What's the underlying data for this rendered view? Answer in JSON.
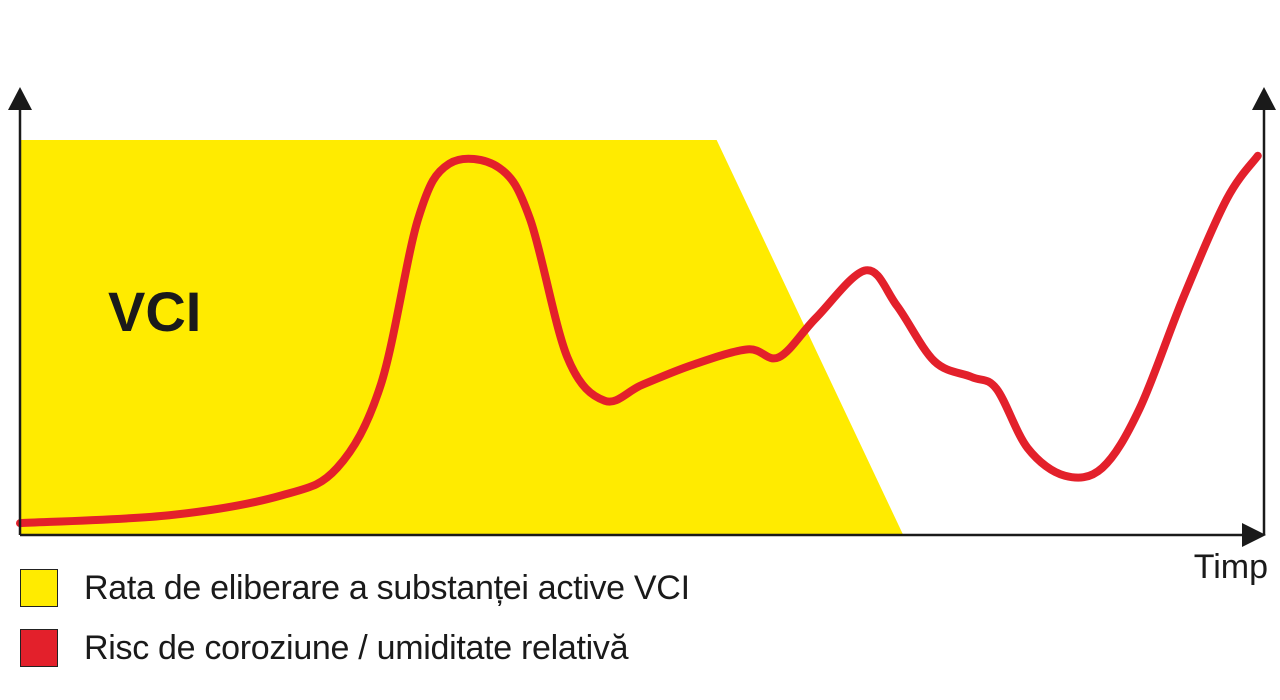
{
  "chart_data": {
    "type": "area",
    "title": "",
    "xlabel": "Timp",
    "ylabel": "",
    "area_label": "VCI",
    "xlim": [
      0,
      100
    ],
    "ylim": [
      0,
      100
    ],
    "colors": {
      "area": "#ffeb00",
      "line": "#e3202b",
      "axis": "#1a1a1a"
    },
    "series": [
      {
        "name": "Rata de eliberare a substanței active VCI",
        "kind": "area",
        "x": [
          0,
          56,
          71
        ],
        "y": [
          100,
          100,
          0
        ]
      },
      {
        "name": "Risc de coroziune / umiditate relativă",
        "kind": "line",
        "x": [
          0,
          12,
          21,
          25.5,
          29,
          32,
          34.5,
          38.5,
          41,
          44,
          47,
          50,
          54,
          58.5,
          61,
          64,
          68,
          70.5,
          73.5,
          76.5,
          78.5,
          81,
          84,
          87,
          90,
          93.5,
          97,
          99.5
        ],
        "y": [
          3,
          5,
          10,
          17,
          38,
          80,
          94,
          93,
          80,
          45,
          34,
          38,
          43,
          47,
          45,
          55,
          67,
          58,
          44,
          40,
          37,
          22,
          15,
          17,
          32,
          60,
          85,
          96
        ]
      }
    ]
  },
  "legend": {
    "items": [
      {
        "label": "Rata de eliberare a substanței active VCI",
        "color": "#ffeb00"
      },
      {
        "label": "Risc de coroziune / umiditate relativă",
        "color": "#e3202b"
      }
    ]
  }
}
